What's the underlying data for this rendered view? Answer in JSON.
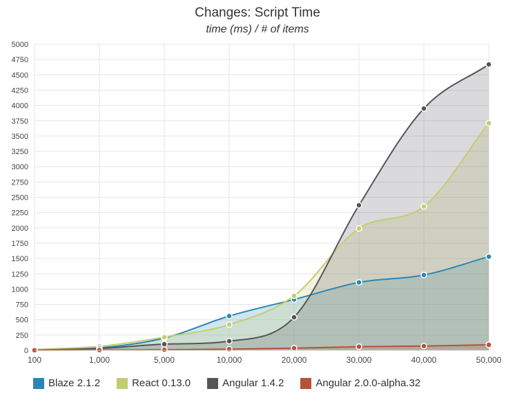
{
  "chart_data": {
    "type": "area",
    "title": "Changes: Script Time",
    "subtitle": "time (ms) / # of items",
    "categories": [
      "100",
      "1,000",
      "5,000",
      "10,000",
      "20,000",
      "30,000",
      "40,000",
      "50,000"
    ],
    "y_ticks": [
      "0",
      "250",
      "500",
      "750",
      "1000",
      "1250",
      "1500",
      "1750",
      "2000",
      "2250",
      "2500",
      "2750",
      "3000",
      "3250",
      "3500",
      "3750",
      "4000",
      "4250",
      "4500",
      "4750",
      "5000"
    ],
    "ylim": [
      0,
      5000
    ],
    "grid": true,
    "legend_position": "bottom",
    "series": [
      {
        "name": "Blaze 2.1.2",
        "color": "#2a87b5",
        "values": [
          8,
          40,
          200,
          560,
          830,
          1110,
          1230,
          1530
        ]
      },
      {
        "name": "React 0.13.0",
        "color": "#c3cd6f",
        "values": [
          12,
          65,
          215,
          420,
          890,
          1990,
          2350,
          3710
        ]
      },
      {
        "name": "Angular 1.4.2",
        "color": "#57535a",
        "values": [
          5,
          30,
          100,
          150,
          540,
          2370,
          3950,
          4670
        ]
      },
      {
        "name": "Angular 2.0.0-alpha.32",
        "color": "#b35439",
        "values": [
          2,
          5,
          10,
          20,
          35,
          60,
          70,
          90
        ]
      }
    ]
  }
}
